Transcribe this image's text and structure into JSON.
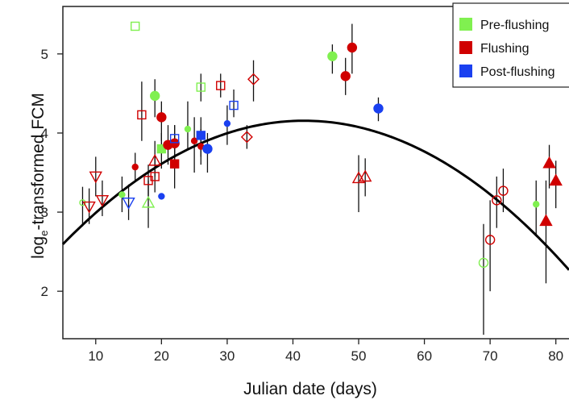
{
  "chart_data": {
    "type": "scatter",
    "xlabel": "Julian date (days)",
    "ylabel_prefix": "log",
    "ylabel_sub": "e",
    "ylabel_suffix": "-transformed FCM",
    "xlim": [
      5,
      82
    ],
    "ylim": [
      1.4,
      5.6
    ],
    "xticks": [
      10,
      20,
      30,
      40,
      50,
      60,
      70,
      80
    ],
    "yticks": [
      2,
      3,
      4,
      5
    ],
    "grid": false,
    "legend_position": "top-right",
    "legend": [
      {
        "label": "Pre-flushing",
        "color": "#80f050"
      },
      {
        "label": "Flushing",
        "color": "#d00000"
      },
      {
        "label": "Post-flushing",
        "color": "#1a40f0"
      }
    ],
    "fit_curve": {
      "type": "quadratic",
      "coefficients": [
        2.14,
        0.0967,
        -0.00116
      ]
    },
    "points": [
      {
        "x": 8,
        "y": 3.12,
        "lo": 2.82,
        "hi": 3.32,
        "shape": "circle",
        "filled": false,
        "group": "pre",
        "size": "small"
      },
      {
        "x": 9,
        "y": 3.07,
        "lo": 2.85,
        "hi": 3.3,
        "shape": "triangle-down",
        "filled": false,
        "group": "flush"
      },
      {
        "x": 10,
        "y": 3.45,
        "lo": 3.2,
        "hi": 3.7,
        "shape": "triangle-down",
        "filled": false,
        "group": "flush"
      },
      {
        "x": 11,
        "y": 3.15,
        "lo": 2.95,
        "hi": 3.4,
        "shape": "triangle-down",
        "filled": false,
        "group": "flush"
      },
      {
        "x": 14,
        "y": 3.22,
        "lo": 3.0,
        "hi": 3.45,
        "shape": "circle",
        "filled": true,
        "group": "pre",
        "size": "small"
      },
      {
        "x": 15,
        "y": 3.12,
        "lo": 2.9,
        "hi": 3.35,
        "shape": "triangle-down",
        "filled": false,
        "group": "post"
      },
      {
        "x": 16,
        "y": 3.57,
        "lo": 3.4,
        "hi": 3.75,
        "shape": "circle",
        "filled": true,
        "group": "flush",
        "size": "small"
      },
      {
        "x": 16,
        "y": 5.35,
        "shape": "square",
        "filled": false,
        "group": "pre"
      },
      {
        "x": 17,
        "y": 4.23,
        "lo": 3.9,
        "hi": 4.65,
        "shape": "square",
        "filled": false,
        "group": "flush"
      },
      {
        "x": 18,
        "y": 3.12,
        "lo": 2.8,
        "hi": 3.4,
        "shape": "triangle",
        "filled": false,
        "group": "pre"
      },
      {
        "x": 18,
        "y": 3.4,
        "lo": 3.2,
        "hi": 3.6,
        "shape": "square",
        "filled": false,
        "group": "flush"
      },
      {
        "x": 19,
        "y": 3.45,
        "lo": 3.25,
        "hi": 3.7,
        "shape": "square",
        "filled": false,
        "group": "flush"
      },
      {
        "x": 19,
        "y": 3.65,
        "lo": 3.45,
        "hi": 3.9,
        "shape": "triangle",
        "filled": false,
        "group": "flush"
      },
      {
        "x": 19,
        "y": 4.47,
        "lo": 4.2,
        "hi": 4.68,
        "shape": "circle",
        "filled": true,
        "group": "pre"
      },
      {
        "x": 20,
        "y": 3.8,
        "lo": 3.55,
        "hi": 4.0,
        "shape": "square",
        "filled": true,
        "group": "pre"
      },
      {
        "x": 20,
        "y": 4.2,
        "lo": 3.9,
        "hi": 4.4,
        "shape": "circle",
        "filled": true,
        "group": "flush"
      },
      {
        "x": 20,
        "y": 3.2,
        "shape": "circle",
        "filled": true,
        "group": "post",
        "size": "small"
      },
      {
        "x": 21,
        "y": 3.85,
        "lo": 3.6,
        "hi": 4.1,
        "shape": "circle",
        "filled": true,
        "group": "flush"
      },
      {
        "x": 22,
        "y": 3.87,
        "lo": 3.6,
        "hi": 4.1,
        "shape": "circle",
        "filled": true,
        "group": "flush"
      },
      {
        "x": 22,
        "y": 3.61,
        "lo": 3.3,
        "hi": 4.0,
        "shape": "square",
        "filled": true,
        "group": "flush"
      },
      {
        "x": 22,
        "y": 3.93,
        "lo": 3.7,
        "hi": 4.1,
        "shape": "square",
        "filled": false,
        "group": "post"
      },
      {
        "x": 24,
        "y": 4.05,
        "lo": 3.8,
        "hi": 4.4,
        "shape": "circle",
        "filled": true,
        "group": "pre",
        "size": "small"
      },
      {
        "x": 25,
        "y": 3.9,
        "lo": 3.5,
        "hi": 4.2,
        "shape": "circle",
        "filled": true,
        "group": "flush",
        "size": "small"
      },
      {
        "x": 26,
        "y": 3.83,
        "lo": 3.6,
        "hi": 4.05,
        "shape": "circle",
        "filled": true,
        "group": "flush",
        "size": "small"
      },
      {
        "x": 26,
        "y": 3.97,
        "lo": 3.7,
        "hi": 4.2,
        "shape": "square",
        "filled": true,
        "group": "post"
      },
      {
        "x": 26,
        "y": 4.58,
        "lo": 4.4,
        "hi": 4.75,
        "shape": "square",
        "filled": false,
        "group": "pre"
      },
      {
        "x": 27,
        "y": 3.8,
        "lo": 3.5,
        "hi": 4.0,
        "shape": "circle",
        "filled": true,
        "group": "post"
      },
      {
        "x": 29,
        "y": 4.6,
        "lo": 4.45,
        "hi": 4.75,
        "shape": "square",
        "filled": false,
        "group": "flush"
      },
      {
        "x": 30,
        "y": 4.12,
        "lo": 3.85,
        "hi": 4.35,
        "shape": "circle",
        "filled": true,
        "group": "post",
        "size": "small"
      },
      {
        "x": 31,
        "y": 4.35,
        "lo": 4.2,
        "hi": 4.55,
        "shape": "square",
        "filled": false,
        "group": "post"
      },
      {
        "x": 33,
        "y": 3.95,
        "lo": 3.8,
        "hi": 4.1,
        "shape": "diamond",
        "filled": false,
        "group": "flush"
      },
      {
        "x": 34,
        "y": 4.68,
        "lo": 4.4,
        "hi": 4.92,
        "shape": "diamond",
        "filled": false,
        "group": "flush"
      },
      {
        "x": 46,
        "y": 4.97,
        "lo": 4.75,
        "hi": 5.12,
        "shape": "circle",
        "filled": true,
        "group": "pre"
      },
      {
        "x": 48,
        "y": 4.72,
        "lo": 4.48,
        "hi": 4.95,
        "shape": "circle",
        "filled": true,
        "group": "flush"
      },
      {
        "x": 49,
        "y": 5.08,
        "lo": 4.75,
        "hi": 5.38,
        "shape": "circle",
        "filled": true,
        "group": "flush"
      },
      {
        "x": 50,
        "y": 3.43,
        "lo": 3.0,
        "hi": 3.72,
        "shape": "triangle",
        "filled": false,
        "group": "flush"
      },
      {
        "x": 51,
        "y": 3.45,
        "lo": 3.2,
        "hi": 3.68,
        "shape": "triangle",
        "filled": false,
        "group": "flush"
      },
      {
        "x": 53,
        "y": 4.31,
        "lo": 4.15,
        "hi": 4.45,
        "shape": "circle",
        "filled": true,
        "group": "post"
      },
      {
        "x": 69,
        "y": 2.36,
        "lo": 1.45,
        "hi": 2.85,
        "shape": "circle",
        "filled": false,
        "group": "pre"
      },
      {
        "x": 70,
        "y": 2.65,
        "lo": 2.0,
        "hi": 3.15,
        "shape": "circle",
        "filled": false,
        "group": "flush"
      },
      {
        "x": 71,
        "y": 3.15,
        "lo": 2.8,
        "hi": 3.45,
        "shape": "circle",
        "filled": false,
        "group": "flush"
      },
      {
        "x": 72,
        "y": 3.27,
        "lo": 3.0,
        "hi": 3.55,
        "shape": "circle",
        "filled": false,
        "group": "flush"
      },
      {
        "x": 77,
        "y": 3.1,
        "lo": 2.7,
        "hi": 3.4,
        "shape": "circle",
        "filled": true,
        "group": "pre",
        "size": "small"
      },
      {
        "x": 78.5,
        "y": 2.89,
        "lo": 2.1,
        "hi": 3.4,
        "shape": "triangle",
        "filled": true,
        "group": "flush"
      },
      {
        "x": 79,
        "y": 3.62,
        "lo": 3.3,
        "hi": 3.85,
        "shape": "triangle",
        "filled": true,
        "group": "flush"
      },
      {
        "x": 80,
        "y": 3.4,
        "lo": 3.05,
        "hi": 3.65,
        "shape": "triangle",
        "filled": true,
        "group": "flush"
      }
    ]
  }
}
